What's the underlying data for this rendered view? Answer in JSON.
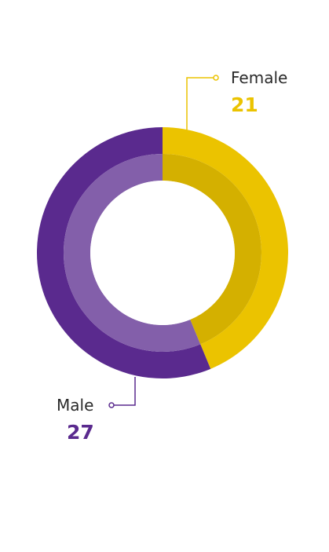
{
  "chart_data": {
    "type": "pie",
    "categories": [
      "Female",
      "Male"
    ],
    "values": [
      21,
      27
    ],
    "colors": {
      "Female": "#ebc300",
      "Male": "#5a2a8e"
    },
    "labels": [
      {
        "name": "Female",
        "value": "21"
      },
      {
        "name": "Male",
        "value": "27"
      }
    ]
  }
}
